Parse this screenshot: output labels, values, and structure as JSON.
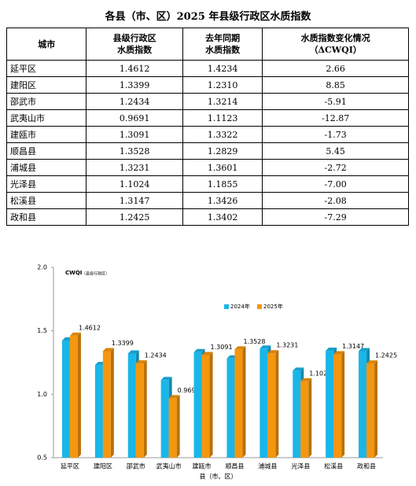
{
  "table": {
    "title": "各县（市、区）2025 年县级行政区水质指数",
    "header": [
      [
        "城市"
      ],
      [
        "县级行政区",
        "水质指数"
      ],
      [
        "去年同期",
        "水质指数"
      ],
      [
        "水质指数变化情况",
        "（ΔCWQI）"
      ]
    ],
    "rows": [
      [
        "延平区",
        "1.4612",
        "1.4234",
        "2.66"
      ],
      [
        "建阳区",
        "1.3399",
        "1.2310",
        "8.85"
      ],
      [
        "邵武市",
        "1.2434",
        "1.3214",
        "-5.91"
      ],
      [
        "武夷山市",
        "0.9691",
        "1.1123",
        "-12.87"
      ],
      [
        "建瓯市",
        "1.3091",
        "1.3322",
        "-1.73"
      ],
      [
        "顺昌县",
        "1.3528",
        "1.2829",
        "5.45"
      ],
      [
        "浦城县",
        "1.3231",
        "1.3601",
        "-2.72"
      ],
      [
        "光泽县",
        "1.1024",
        "1.1855",
        "-7.00"
      ],
      [
        "松溪县",
        "1.3147",
        "1.3426",
        "-2.08"
      ],
      [
        "政和县",
        "1.2425",
        "1.3402",
        "-7.29"
      ]
    ]
  },
  "chart_data": {
    "type": "bar",
    "y_label": "CWQI",
    "y_label_note": "（县级行政区）",
    "x_label": "县（市、区）",
    "categories": [
      "延平区",
      "建阳区",
      "邵武市",
      "武夷山市",
      "建瓯市",
      "顺昌县",
      "浦城县",
      "光泽县",
      "松溪县",
      "政和县"
    ],
    "series": [
      {
        "name": "2024年",
        "color": "#1ab6e8",
        "values": [
          1.4234,
          1.231,
          1.3214,
          1.1123,
          1.3322,
          1.2829,
          1.3601,
          1.1855,
          1.3426,
          1.3402
        ]
      },
      {
        "name": "2025年",
        "color": "#f5960f",
        "values": [
          1.4612,
          1.3399,
          1.2434,
          0.9691,
          1.3091,
          1.3528,
          1.3231,
          1.1024,
          1.3147,
          1.2425
        ],
        "show_labels": true
      }
    ],
    "ylim": [
      0.5,
      2.0
    ],
    "yticks": [
      0.5,
      {
        "value": 1,
        "label": "1.0"
      },
      1.5,
      {
        "value": 2,
        "label": "2.0"
      }
    ]
  }
}
